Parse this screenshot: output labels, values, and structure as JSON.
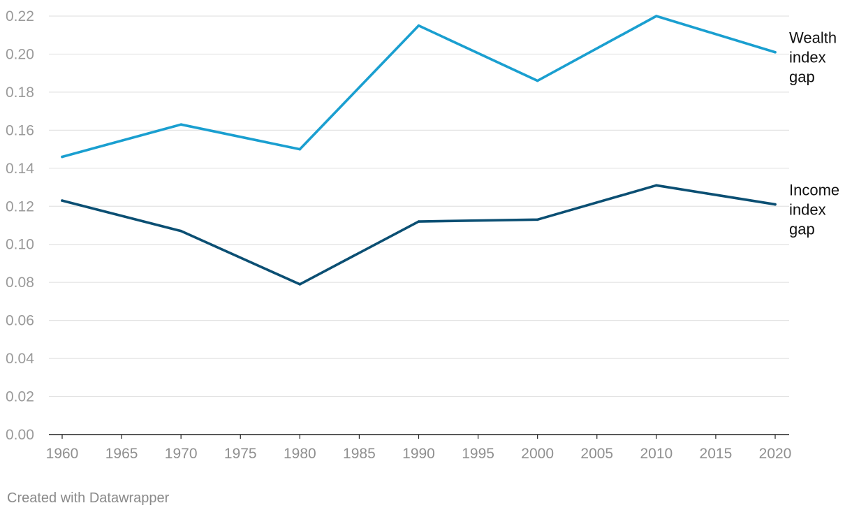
{
  "chart_data": {
    "type": "line",
    "title": "",
    "xlabel": "",
    "ylabel": "",
    "x": [
      1960,
      1970,
      1980,
      1990,
      2000,
      2010,
      2020
    ],
    "series": [
      {
        "name": "Wealth index gap",
        "label_lines": [
          "Wealth",
          "index",
          "gap"
        ],
        "color": "#1a9fd0",
        "values": [
          0.146,
          0.163,
          0.15,
          0.215,
          0.186,
          0.22,
          0.201
        ]
      },
      {
        "name": "Income index gap",
        "label_lines": [
          "Income",
          "index",
          "gap"
        ],
        "color": "#0b4f73",
        "values": [
          0.123,
          0.107,
          0.079,
          0.112,
          0.113,
          0.131,
          0.121
        ]
      }
    ],
    "xlim": [
      1960,
      2020
    ],
    "ylim": [
      0,
      0.22
    ],
    "x_ticks": [
      1960,
      1965,
      1970,
      1975,
      1980,
      1985,
      1990,
      1995,
      2000,
      2005,
      2010,
      2015,
      2020
    ],
    "y_ticks": [
      "0.00",
      "0.02",
      "0.04",
      "0.06",
      "0.08",
      "0.10",
      "0.12",
      "0.14",
      "0.16",
      "0.18",
      "0.20",
      "0.22"
    ],
    "grid": true,
    "legend": "direct labels at right end of lines"
  },
  "footer": {
    "credit": "Created with Datawrapper"
  }
}
